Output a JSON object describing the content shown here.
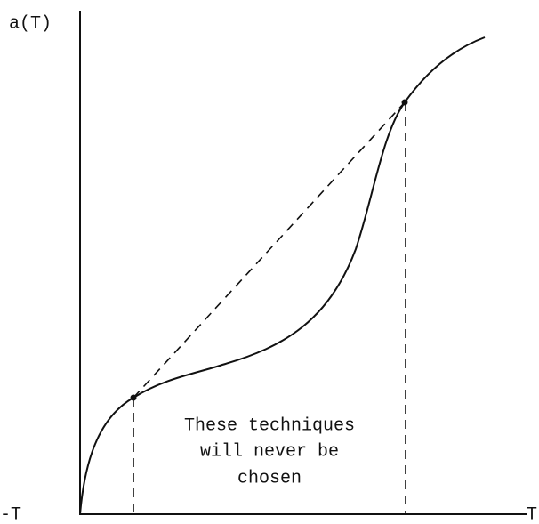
{
  "y_axis_label": "a(T)",
  "x_axis_label": "T",
  "left_label": "-T",
  "annotation": [
    "These techniques",
    "will never be",
    "chosen"
  ]
}
